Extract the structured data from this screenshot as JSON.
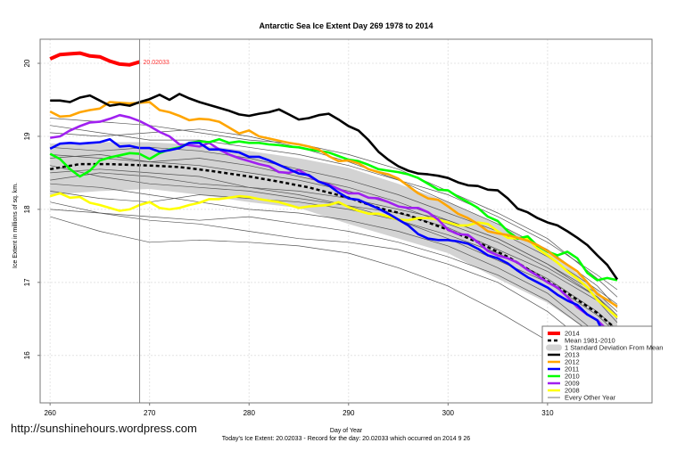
{
  "chart_data": {
    "type": "line",
    "title": "Antarctic Sea Ice Extent Day 269 1978 to 2014",
    "xlabel": "Day of Year",
    "ylabel": "Ice Extent in millions of sq. km.",
    "subtitle": "Today's Ice Extent: 20.02033  - Record for the day: 20.02033 which occurred on 2014 9 26",
    "watermark": "http://sunshinehours.wordpress.com",
    "xlim": [
      259,
      320.5
    ],
    "ylim": [
      15.35,
      20.33
    ],
    "xticks": [
      260,
      270,
      280,
      290,
      300,
      310
    ],
    "yticks": [
      16,
      17,
      18,
      19,
      20
    ],
    "grid": true,
    "current_day": 269,
    "current_value_label": "20.02033",
    "legend_position": "bottom-right",
    "legend": [
      "2014",
      "Mean 1981-2010",
      "1 Standard Deviation From Mean",
      "2013",
      "2012",
      "2011",
      "2010",
      "2009",
      "2008",
      "Every Other Year"
    ],
    "colors": {
      "2014": "#ff0000",
      "2013": "#000000",
      "2012": "#ffa500",
      "2011": "#0000ff",
      "2010": "#00ff00",
      "2009": "#a020f0",
      "2008": "#ffff00",
      "mean": "#000000",
      "std_band": "#d3d3d3",
      "other": "#555555"
    },
    "std_band": {
      "x": [
        260,
        265,
        270,
        275,
        280,
        285,
        290,
        295,
        300,
        305,
        310,
        315,
        317
      ],
      "upper": [
        18.9,
        18.92,
        18.92,
        18.88,
        18.8,
        18.7,
        18.57,
        18.35,
        18.1,
        17.8,
        17.45,
        16.9,
        16.55
      ],
      "lower": [
        18.2,
        18.25,
        18.28,
        18.2,
        18.1,
        18.02,
        17.8,
        17.6,
        17.4,
        17.05,
        16.72,
        16.25,
        15.98
      ]
    },
    "mean": {
      "name": "Mean 1981-2010",
      "x": [
        260,
        263,
        266,
        270,
        273,
        276,
        280,
        283,
        286,
        290,
        293,
        296,
        300,
        303,
        306,
        309,
        312,
        315,
        317
      ],
      "y": [
        18.55,
        18.62,
        18.62,
        18.6,
        18.58,
        18.53,
        18.45,
        18.38,
        18.3,
        18.16,
        18.02,
        17.92,
        17.72,
        17.55,
        17.35,
        17.1,
        16.85,
        16.58,
        16.35
      ]
    },
    "other_years": {
      "name": "Every Other Year",
      "x": [
        260,
        265,
        270,
        275,
        280,
        285,
        290,
        295,
        300,
        305,
        310,
        315,
        317
      ],
      "lines": [
        [
          17.9,
          17.7,
          17.55,
          17.58,
          17.55,
          17.5,
          17.4,
          17.2,
          16.95,
          16.6,
          16.2,
          15.7,
          15.45
        ],
        [
          18.1,
          17.95,
          17.85,
          17.8,
          17.7,
          17.6,
          17.55,
          17.45,
          17.25,
          17.0,
          16.6,
          16.05,
          15.75
        ],
        [
          18.35,
          18.3,
          18.2,
          18.1,
          18.0,
          17.95,
          17.85,
          17.7,
          17.5,
          17.2,
          16.85,
          16.3,
          16.0
        ],
        [
          18.5,
          18.55,
          18.5,
          18.45,
          18.3,
          18.2,
          18.05,
          17.85,
          17.65,
          17.4,
          17.05,
          16.6,
          16.35
        ],
        [
          18.7,
          18.75,
          18.65,
          18.6,
          18.5,
          18.4,
          18.25,
          18.05,
          17.8,
          17.55,
          17.2,
          16.8,
          16.55
        ],
        [
          18.85,
          18.8,
          18.85,
          18.8,
          18.7,
          18.55,
          18.4,
          18.2,
          17.95,
          17.7,
          17.35,
          16.9,
          16.7
        ],
        [
          19.25,
          19.2,
          19.15,
          19.05,
          18.95,
          18.9,
          18.75,
          18.55,
          18.25,
          17.95,
          17.6,
          17.05,
          16.8
        ],
        [
          19.15,
          19.05,
          18.95,
          18.95,
          18.85,
          18.75,
          18.6,
          18.4,
          18.2,
          17.9,
          17.55,
          17.1,
          16.9
        ],
        [
          18.25,
          18.15,
          18.1,
          18.2,
          18.15,
          18.1,
          18.0,
          17.85,
          17.6,
          17.3,
          17.0,
          16.55,
          16.3
        ],
        [
          18.6,
          18.45,
          18.35,
          18.3,
          18.25,
          18.15,
          18.05,
          17.95,
          17.75,
          17.45,
          17.15,
          16.75,
          16.45
        ],
        [
          19.05,
          19.0,
          19.05,
          19.1,
          19.0,
          18.85,
          18.65,
          18.4,
          18.1,
          17.8,
          17.45,
          16.95,
          16.65
        ],
        [
          18.4,
          18.5,
          18.45,
          18.35,
          18.3,
          18.25,
          18.15,
          18.0,
          17.85,
          17.6,
          17.25,
          16.85,
          16.6
        ],
        [
          18.0,
          17.95,
          17.9,
          17.85,
          17.9,
          17.8,
          17.7,
          17.55,
          17.35,
          17.1,
          16.75,
          16.25,
          15.95
        ],
        [
          18.75,
          18.7,
          18.65,
          18.7,
          18.6,
          18.45,
          18.3,
          18.1,
          17.85,
          17.6,
          17.25,
          16.8,
          16.5
        ]
      ]
    },
    "x_start": 260,
    "series": [
      {
        "name": "2008",
        "values": [
          18.18,
          18.22,
          18.16,
          18.17,
          18.09,
          18.06,
          18.02,
          17.98,
          18.0,
          18.06,
          18.1,
          18.02,
          18.0,
          18.02,
          18.06,
          18.09,
          18.14,
          18.14,
          18.16,
          18.18,
          18.17,
          18.14,
          18.12,
          18.1,
          18.06,
          18.02,
          18.04,
          18.05,
          18.06,
          18.1,
          18.03,
          17.98,
          17.94,
          17.94,
          17.9,
          17.86,
          17.85,
          17.88,
          17.88,
          17.86,
          17.82,
          17.78,
          17.78,
          17.82,
          17.8,
          17.7,
          17.61,
          17.6,
          17.6,
          17.46,
          17.37,
          17.27,
          17.15,
          17.05,
          16.93,
          16.76,
          16.64,
          16.52
        ]
      },
      {
        "name": "2009",
        "values": [
          18.98,
          19.0,
          19.08,
          19.14,
          19.19,
          19.2,
          19.24,
          19.29,
          19.26,
          19.21,
          19.14,
          19.06,
          19.0,
          18.89,
          18.88,
          18.86,
          18.91,
          18.82,
          18.75,
          18.7,
          18.66,
          18.62,
          18.59,
          18.51,
          18.5,
          18.54,
          18.46,
          18.38,
          18.34,
          18.28,
          18.22,
          18.22,
          18.16,
          18.15,
          18.1,
          18.04,
          18.02,
          18.02,
          17.96,
          17.86,
          17.72,
          17.66,
          17.65,
          17.55,
          17.43,
          17.37,
          17.33,
          17.27,
          17.17,
          17.09,
          17.0,
          16.93,
          16.8,
          16.66,
          16.56,
          16.48,
          16.35,
          16.2
        ]
      },
      {
        "name": "2010",
        "values": [
          18.76,
          18.69,
          18.55,
          18.45,
          18.53,
          18.67,
          18.71,
          18.74,
          18.77,
          18.76,
          18.69,
          18.77,
          18.82,
          18.85,
          18.91,
          18.93,
          18.92,
          18.96,
          18.91,
          18.93,
          18.91,
          18.91,
          18.89,
          18.88,
          18.86,
          18.85,
          18.82,
          18.8,
          18.78,
          18.73,
          18.68,
          18.66,
          18.61,
          18.55,
          18.53,
          18.51,
          18.48,
          18.43,
          18.35,
          18.27,
          18.26,
          18.17,
          18.1,
          18.02,
          17.9,
          17.84,
          17.7,
          17.6,
          17.63,
          17.5,
          17.42,
          17.37,
          17.42,
          17.33,
          17.13,
          17.03,
          17.06,
          17.03
        ]
      },
      {
        "name": "2011",
        "values": [
          18.83,
          18.9,
          18.91,
          18.9,
          18.91,
          18.92,
          18.96,
          18.86,
          18.87,
          18.84,
          18.84,
          18.79,
          18.81,
          18.84,
          18.91,
          18.91,
          18.82,
          18.82,
          18.8,
          18.78,
          18.72,
          18.72,
          18.67,
          18.61,
          18.55,
          18.49,
          18.47,
          18.38,
          18.33,
          18.23,
          18.15,
          18.13,
          18.07,
          18.01,
          17.94,
          17.86,
          17.78,
          17.66,
          17.6,
          17.58,
          17.58,
          17.56,
          17.53,
          17.46,
          17.37,
          17.33,
          17.26,
          17.16,
          17.07,
          17.0,
          16.93,
          16.83,
          16.75,
          16.69,
          16.56,
          16.48,
          16.2,
          15.99
        ]
      },
      {
        "name": "2012",
        "values": [
          19.34,
          19.27,
          19.28,
          19.33,
          19.36,
          19.38,
          19.47,
          19.46,
          19.45,
          19.46,
          19.47,
          19.36,
          19.33,
          19.28,
          19.22,
          19.24,
          19.23,
          19.2,
          19.12,
          19.04,
          19.08,
          19.0,
          18.97,
          18.94,
          18.91,
          18.89,
          18.86,
          18.82,
          18.73,
          18.66,
          18.67,
          18.63,
          18.55,
          18.51,
          18.48,
          18.42,
          18.32,
          18.22,
          18.15,
          18.13,
          18.04,
          17.94,
          17.88,
          17.8,
          17.7,
          17.67,
          17.65,
          17.61,
          17.57,
          17.51,
          17.43,
          17.33,
          17.24,
          17.15,
          17.0,
          16.84,
          16.76,
          16.67
        ]
      },
      {
        "name": "2013",
        "values": [
          19.49,
          19.49,
          19.47,
          19.53,
          19.56,
          19.49,
          19.42,
          19.44,
          19.42,
          19.47,
          19.51,
          19.57,
          19.5,
          19.58,
          19.52,
          19.47,
          19.43,
          19.39,
          19.35,
          19.3,
          19.28,
          19.31,
          19.33,
          19.37,
          19.3,
          19.23,
          19.25,
          19.29,
          19.31,
          19.23,
          19.14,
          19.08,
          18.95,
          18.79,
          18.68,
          18.59,
          18.53,
          18.49,
          18.48,
          18.46,
          18.43,
          18.37,
          18.33,
          18.32,
          18.27,
          18.26,
          18.15,
          18.01,
          17.96,
          17.88,
          17.82,
          17.78,
          17.7,
          17.61,
          17.51,
          17.37,
          17.24,
          17.04
        ]
      },
      {
        "name": "2014",
        "values": [
          20.06,
          20.12,
          20.13,
          20.14,
          20.1,
          20.09,
          20.03,
          19.99,
          19.98,
          20.02
        ]
      }
    ]
  }
}
